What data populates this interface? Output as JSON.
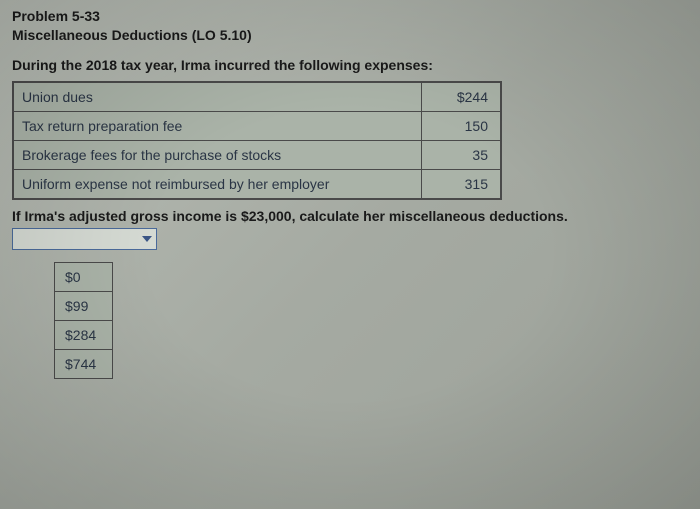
{
  "problem": {
    "number": "Problem 5-33",
    "title": "Miscellaneous Deductions (LO 5.10)",
    "intro": "During the 2018 tax year, Irma incurred the following expenses:",
    "question": "If Irma's adjusted gross income is $23,000, calculate her miscellaneous deductions."
  },
  "expenses": {
    "rows": [
      {
        "label": "Union dues",
        "value": "$244"
      },
      {
        "label": "Tax return preparation fee",
        "value": "150"
      },
      {
        "label": "Brokerage fees for the purchase of stocks",
        "value": "35"
      },
      {
        "label": "Uniform expense not reimbursed by her employer",
        "value": "315"
      }
    ]
  },
  "options": {
    "items": [
      {
        "value": "$0"
      },
      {
        "value": "$99"
      },
      {
        "value": "$284"
      },
      {
        "value": "$744"
      }
    ]
  },
  "styling": {
    "table_bg": "#aab3a8",
    "table_border": "#4a4a4a",
    "text_color": "#2a3545",
    "dropdown_border": "#4a6a9a",
    "arrow_color": "#3a5585"
  }
}
